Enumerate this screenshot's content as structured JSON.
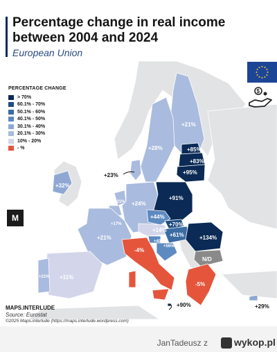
{
  "title": "Percentage change in real income between 2004 and 2024",
  "subtitle": "European Union",
  "legend": {
    "title": "PERCENTAGE CHANGE",
    "items": [
      {
        "label": "> 70%",
        "color": "#0b2a55"
      },
      {
        "label": "60.1% - 70%",
        "color": "#1f4c80"
      },
      {
        "label": "50.1% - 60%",
        "color": "#3b6ca3"
      },
      {
        "label": "40.1% - 50%",
        "color": "#5d8ac0"
      },
      {
        "label": "30.1% - 40%",
        "color": "#8ea8d3"
      },
      {
        "label": "20.1% - 30%",
        "color": "#a9bbde"
      },
      {
        "label": "10% - 20%",
        "color": "#d3d6ea"
      },
      {
        "label": "- %",
        "color": "#e5553c"
      }
    ]
  },
  "colors": {
    "gt70": "#0b2a55",
    "c60_70": "#1f4c80",
    "c50_60": "#3b6ca3",
    "c40_50": "#5d8ac0",
    "c30_40": "#8ea8d3",
    "c20_30": "#a9bbde",
    "c10_20": "#d3d6ea",
    "negative": "#e5553c",
    "nodata": "#8a8a8a",
    "noneu": "#e2e3e4"
  },
  "countries": {
    "finland": "+21%",
    "sweden": "+28%",
    "estonia": "+85%",
    "latvia": "+83%",
    "lithuania": "+95%",
    "denmark": "+23%",
    "ireland": "+32%",
    "netherlands": "+21%",
    "belgium": "+17%",
    "germany": "+24%",
    "poland": "+91%",
    "czechia": "+44%",
    "slovakia": "+70%",
    "austria": "+14%",
    "hungary": "+61%",
    "slovenia": "+40%",
    "croatia": "+56%",
    "romania": "+134%",
    "bulgaria": "N/D",
    "france": "+21%",
    "spain": "+11%",
    "portugal": "+21%",
    "italy": "-4%",
    "greece": "-5%",
    "malta": "+90%",
    "cyprus": "+29%"
  },
  "brand_badge": "M",
  "footer": {
    "brand": "MAPS.INTERLUDE",
    "source": "Source: Eurostat",
    "copyright": "©2025 Maps.interlude (https://maps.interlude.wordpress.com)"
  },
  "watermark": {
    "user": "JanTadeusz",
    "separator": "z",
    "site": "wykop.pl"
  }
}
